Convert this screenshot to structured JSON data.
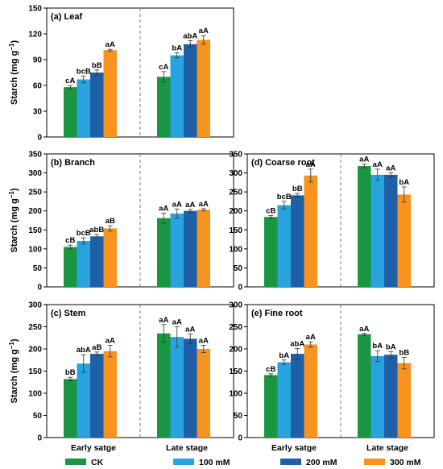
{
  "colors": {
    "CK": "#1a9641",
    "100 mM": "#29a3e0",
    "200 mM": "#1f5fa8",
    "300 mM": "#f7931e",
    "frame": "#000000",
    "divider": "#808080"
  },
  "legend": [
    "CK",
    "100 mM",
    "200 mM",
    "300 mM"
  ],
  "ylabel_main": "Starch (mg g",
  "ylabel_sup": "−1",
  "ylabel_close": ")",
  "xcategories": [
    "Early  satge",
    "Late  stage"
  ],
  "chart_data": [
    {
      "type": "bar",
      "title": "(a) Leaf",
      "categories": [
        "Early  satge",
        "Late  stage"
      ],
      "ylim": [
        0,
        150
      ],
      "yticks": [
        0,
        30,
        60,
        90,
        120,
        150
      ],
      "series": [
        {
          "name": "CK",
          "values": [
            58,
            70
          ],
          "errors": [
            2,
            6
          ],
          "labels": [
            "cA",
            "cA"
          ]
        },
        {
          "name": "100 mM",
          "values": [
            67,
            95
          ],
          "errors": [
            4,
            3
          ],
          "labels": [
            "bcB",
            "bA"
          ]
        },
        {
          "name": "200 mM",
          "values": [
            75,
            108
          ],
          "errors": [
            3,
            4
          ],
          "labels": [
            "bB",
            "abA"
          ]
        },
        {
          "name": "300 mM",
          "values": [
            101,
            113
          ],
          "errors": [
            1,
            5
          ],
          "labels": [
            "aA",
            "aA"
          ]
        }
      ]
    },
    {
      "type": "bar",
      "title": "(b) Branch",
      "categories": [
        "Early  satge",
        "Late  stage"
      ],
      "ylim": [
        0,
        350
      ],
      "yticks": [
        0,
        50,
        100,
        150,
        200,
        250,
        300,
        350
      ],
      "series": [
        {
          "name": "CK",
          "values": [
            105,
            181
          ],
          "errors": [
            5,
            13
          ],
          "labels": [
            "cB",
            "aA"
          ]
        },
        {
          "name": "100 mM",
          "values": [
            121,
            193
          ],
          "errors": [
            8,
            12
          ],
          "labels": [
            "bcB",
            "aA"
          ]
        },
        {
          "name": "200 mM",
          "values": [
            133,
            200
          ],
          "errors": [
            5,
            4
          ],
          "labels": [
            "abB",
            "aA"
          ]
        },
        {
          "name": "300 mM",
          "values": [
            154,
            203
          ],
          "errors": [
            7,
            3
          ],
          "labels": [
            "aB",
            "aA"
          ]
        }
      ]
    },
    {
      "type": "bar",
      "title": "(d) Coarse root",
      "categories": [
        "Early  satge",
        "Late  stage"
      ],
      "ylim": [
        0,
        350
      ],
      "yticks": [
        0,
        50,
        100,
        150,
        200,
        250,
        300,
        350
      ],
      "series": [
        {
          "name": "CK",
          "values": [
            184,
            318
          ],
          "errors": [
            4,
            5
          ],
          "labels": [
            "cB",
            "aA"
          ]
        },
        {
          "name": "100 mM",
          "values": [
            215,
            295
          ],
          "errors": [
            10,
            15
          ],
          "labels": [
            "bcB",
            "aA"
          ]
        },
        {
          "name": "200 mM",
          "values": [
            241,
            295
          ],
          "errors": [
            5,
            5
          ],
          "labels": [
            "bB",
            "aA"
          ]
        },
        {
          "name": "300 mM",
          "values": [
            293,
            243
          ],
          "errors": [
            17,
            20
          ],
          "labels": [
            "aA",
            "bA"
          ]
        }
      ]
    },
    {
      "type": "bar",
      "title": "(c) Stem",
      "categories": [
        "Early  satge",
        "Late  stage"
      ],
      "ylim": [
        0,
        300
      ],
      "yticks": [
        0,
        50,
        100,
        150,
        200,
        250,
        300
      ],
      "series": [
        {
          "name": "CK",
          "values": [
            132,
            235
          ],
          "errors": [
            4,
            20
          ],
          "labels": [
            "bB",
            "aA"
          ]
        },
        {
          "name": "100 mM",
          "values": [
            167,
            227
          ],
          "errors": [
            20,
            23
          ],
          "labels": [
            "abA",
            "aA"
          ]
        },
        {
          "name": "200 mM",
          "values": [
            189,
            223
          ],
          "errors": [
            4,
            11
          ],
          "labels": [
            "aB",
            "aA"
          ]
        },
        {
          "name": "300 mM",
          "values": [
            195,
            200
          ],
          "errors": [
            13,
            8
          ],
          "labels": [
            "aA",
            "aA"
          ]
        }
      ]
    },
    {
      "type": "bar",
      "title": "(e) Fine root",
      "categories": [
        "Early  satge",
        "Late  stage"
      ],
      "ylim": [
        0,
        300
      ],
      "yticks": [
        0,
        50,
        100,
        150,
        200,
        250,
        300
      ],
      "series": [
        {
          "name": "CK",
          "values": [
            141,
            233
          ],
          "errors": [
            3,
            2
          ],
          "labels": [
            "cB",
            "aA"
          ]
        },
        {
          "name": "100 mM",
          "values": [
            170,
            184
          ],
          "errors": [
            5,
            12
          ],
          "labels": [
            "bA",
            "bA"
          ]
        },
        {
          "name": "200 mM",
          "values": [
            189,
            187
          ],
          "errors": [
            12,
            7
          ],
          "labels": [
            "abA",
            "bA"
          ]
        },
        {
          "name": "300 mM",
          "values": [
            210,
            168
          ],
          "errors": [
            6,
            13
          ],
          "labels": [
            "aA",
            "bB"
          ]
        }
      ]
    }
  ]
}
